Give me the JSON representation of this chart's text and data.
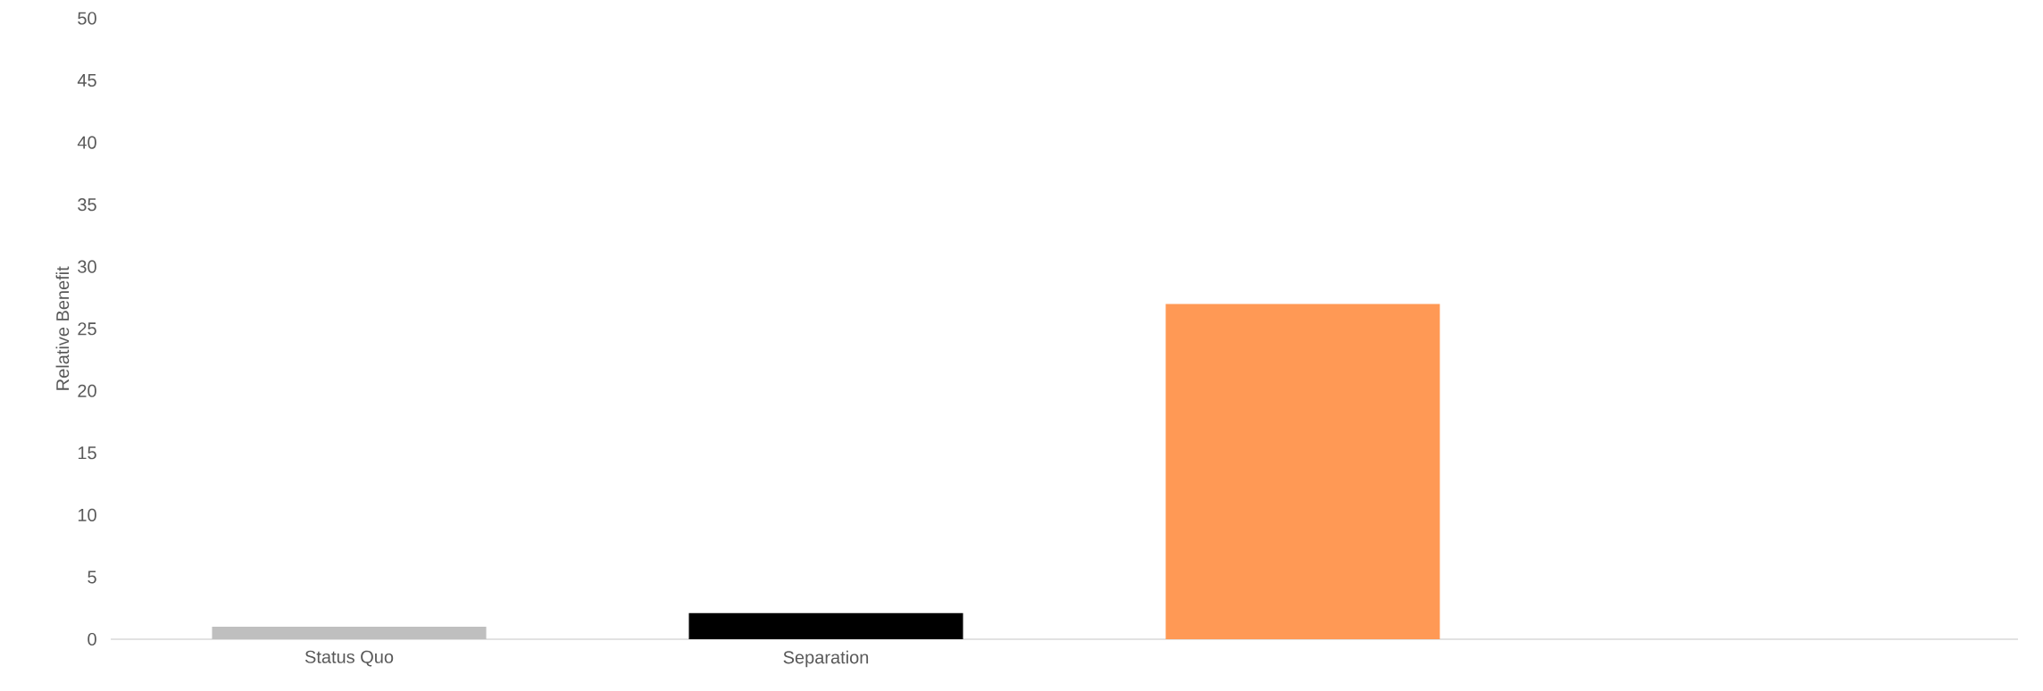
{
  "chart_data": {
    "type": "bar",
    "ylabel": "Relative Benefit",
    "categories": [
      "Status Quo",
      "Separation",
      null,
      null
    ],
    "values": [
      1,
      2.1,
      27,
      null
    ],
    "colors": [
      "#bfbfbf",
      "#000000",
      "#ff9955",
      "#ff9955"
    ],
    "ylim": [
      0,
      50
    ],
    "yticks": [
      0,
      5,
      10,
      15,
      20,
      25,
      30,
      35,
      40,
      45,
      50
    ]
  }
}
